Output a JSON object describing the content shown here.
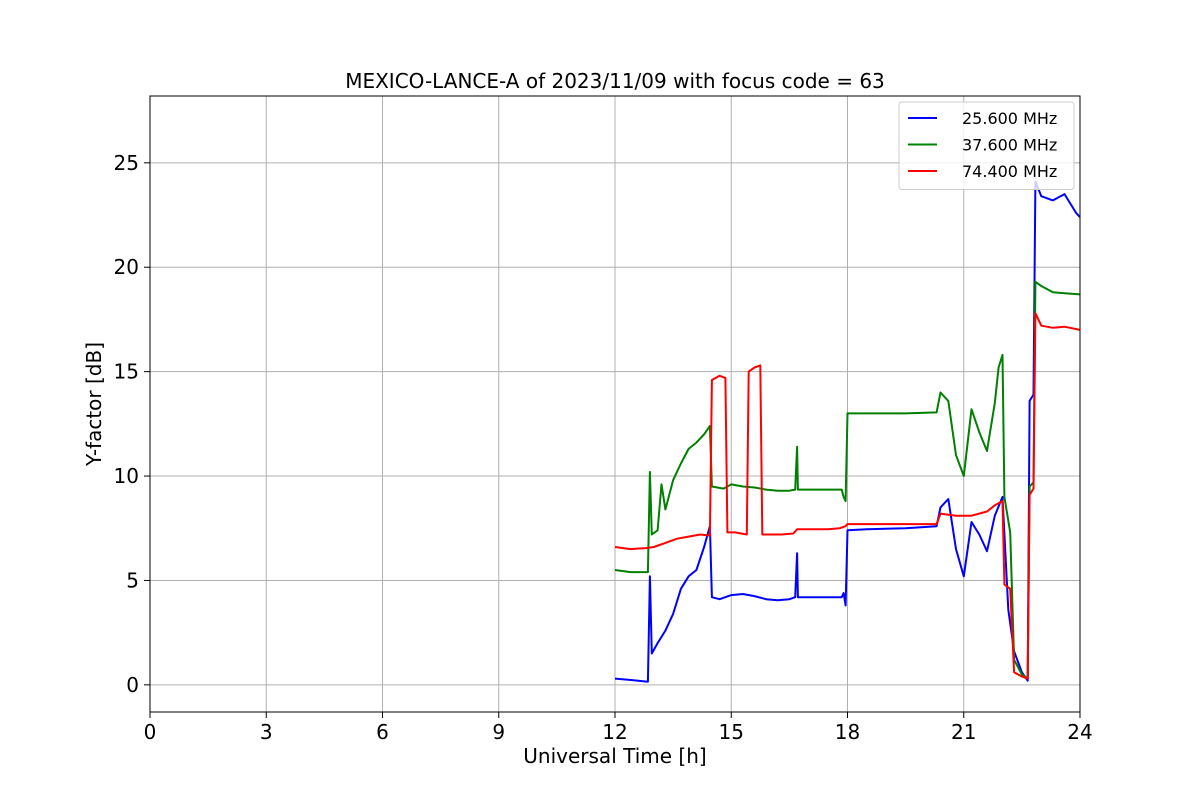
{
  "chart_data": {
    "type": "line",
    "title": "MEXICO-LANCE-A of 2023/11/09 with focus code = 63",
    "xlabel": "Universal Time [h]",
    "ylabel": "Y-factor [dB]",
    "xlim": [
      0,
      24
    ],
    "ylim": [
      -1.3,
      28.2
    ],
    "xticks": [
      0,
      3,
      6,
      9,
      12,
      15,
      18,
      21,
      24
    ],
    "yticks": [
      0,
      5,
      10,
      15,
      20,
      25
    ],
    "grid": true,
    "legend_position": "top-right",
    "series": [
      {
        "name": "25.600 MHz",
        "color": "#0000ff",
        "points": [
          [
            12.0,
            0.3
          ],
          [
            12.3,
            0.25
          ],
          [
            12.6,
            0.2
          ],
          [
            12.85,
            0.15
          ],
          [
            12.9,
            5.2
          ],
          [
            12.95,
            1.5
          ],
          [
            13.1,
            2.0
          ],
          [
            13.3,
            2.6
          ],
          [
            13.5,
            3.4
          ],
          [
            13.7,
            4.6
          ],
          [
            13.9,
            5.2
          ],
          [
            14.1,
            5.5
          ],
          [
            14.3,
            6.6
          ],
          [
            14.45,
            7.6
          ],
          [
            14.5,
            4.2
          ],
          [
            14.7,
            4.1
          ],
          [
            15.0,
            4.3
          ],
          [
            15.3,
            4.35
          ],
          [
            15.6,
            4.25
          ],
          [
            15.9,
            4.1
          ],
          [
            16.2,
            4.05
          ],
          [
            16.5,
            4.1
          ],
          [
            16.65,
            4.2
          ],
          [
            16.7,
            6.3
          ],
          [
            16.72,
            4.2
          ],
          [
            17.0,
            4.2
          ],
          [
            17.5,
            4.2
          ],
          [
            17.85,
            4.2
          ],
          [
            17.9,
            4.4
          ],
          [
            17.95,
            3.8
          ],
          [
            18.0,
            7.4
          ],
          [
            18.5,
            7.45
          ],
          [
            19.5,
            7.5
          ],
          [
            20.3,
            7.6
          ],
          [
            20.4,
            8.5
          ],
          [
            20.6,
            8.9
          ],
          [
            20.8,
            6.5
          ],
          [
            21.0,
            5.2
          ],
          [
            21.2,
            7.8
          ],
          [
            21.4,
            7.2
          ],
          [
            21.6,
            6.4
          ],
          [
            21.8,
            8.1
          ],
          [
            22.0,
            9.0
          ],
          [
            22.15,
            3.6
          ],
          [
            22.3,
            1.6
          ],
          [
            22.5,
            0.6
          ],
          [
            22.65,
            0.2
          ],
          [
            22.7,
            13.6
          ],
          [
            22.8,
            13.9
          ],
          [
            22.85,
            24.1
          ],
          [
            23.0,
            23.4
          ],
          [
            23.3,
            23.2
          ],
          [
            23.6,
            23.5
          ],
          [
            23.9,
            22.6
          ],
          [
            24.0,
            22.4
          ]
        ]
      },
      {
        "name": "37.600 MHz",
        "color": "#008000",
        "points": [
          [
            12.0,
            5.5
          ],
          [
            12.4,
            5.4
          ],
          [
            12.85,
            5.4
          ],
          [
            12.9,
            10.2
          ],
          [
            12.95,
            7.2
          ],
          [
            13.1,
            7.4
          ],
          [
            13.2,
            9.6
          ],
          [
            13.3,
            8.4
          ],
          [
            13.5,
            9.8
          ],
          [
            13.7,
            10.6
          ],
          [
            13.9,
            11.3
          ],
          [
            14.1,
            11.6
          ],
          [
            14.3,
            12.0
          ],
          [
            14.45,
            12.4
          ],
          [
            14.5,
            9.5
          ],
          [
            14.8,
            9.4
          ],
          [
            15.0,
            9.6
          ],
          [
            15.3,
            9.5
          ],
          [
            15.6,
            9.45
          ],
          [
            15.9,
            9.35
          ],
          [
            16.2,
            9.3
          ],
          [
            16.5,
            9.3
          ],
          [
            16.65,
            9.35
          ],
          [
            16.7,
            11.4
          ],
          [
            16.72,
            9.35
          ],
          [
            17.0,
            9.35
          ],
          [
            17.5,
            9.35
          ],
          [
            17.85,
            9.35
          ],
          [
            17.9,
            9.0
          ],
          [
            17.95,
            8.8
          ],
          [
            18.0,
            13.0
          ],
          [
            18.5,
            13.0
          ],
          [
            19.5,
            13.0
          ],
          [
            20.3,
            13.05
          ],
          [
            20.4,
            14.0
          ],
          [
            20.6,
            13.6
          ],
          [
            20.8,
            11.0
          ],
          [
            21.0,
            10.0
          ],
          [
            21.2,
            13.2
          ],
          [
            21.4,
            12.1
          ],
          [
            21.6,
            11.2
          ],
          [
            21.8,
            13.5
          ],
          [
            21.9,
            15.2
          ],
          [
            22.0,
            15.8
          ],
          [
            22.05,
            9.0
          ],
          [
            22.2,
            7.3
          ],
          [
            22.3,
            1.2
          ],
          [
            22.5,
            0.5
          ],
          [
            22.65,
            0.3
          ],
          [
            22.7,
            9.5
          ],
          [
            22.8,
            9.7
          ],
          [
            22.85,
            19.3
          ],
          [
            23.0,
            19.1
          ],
          [
            23.3,
            18.8
          ],
          [
            23.6,
            18.75
          ],
          [
            24.0,
            18.7
          ]
        ]
      },
      {
        "name": "74.400 MHz",
        "color": "#ff0000",
        "points": [
          [
            12.0,
            6.6
          ],
          [
            12.4,
            6.5
          ],
          [
            12.8,
            6.55
          ],
          [
            13.0,
            6.6
          ],
          [
            13.3,
            6.8
          ],
          [
            13.6,
            7.0
          ],
          [
            13.9,
            7.1
          ],
          [
            14.2,
            7.2
          ],
          [
            14.45,
            7.15
          ],
          [
            14.5,
            14.6
          ],
          [
            14.7,
            14.8
          ],
          [
            14.85,
            14.7
          ],
          [
            14.9,
            7.3
          ],
          [
            15.1,
            7.3
          ],
          [
            15.4,
            7.2
          ],
          [
            15.45,
            15.0
          ],
          [
            15.6,
            15.2
          ],
          [
            15.75,
            15.3
          ],
          [
            15.8,
            7.2
          ],
          [
            16.0,
            7.2
          ],
          [
            16.3,
            7.2
          ],
          [
            16.6,
            7.25
          ],
          [
            16.7,
            7.45
          ],
          [
            17.0,
            7.45
          ],
          [
            17.5,
            7.45
          ],
          [
            17.8,
            7.5
          ],
          [
            17.95,
            7.6
          ],
          [
            18.0,
            7.7
          ],
          [
            18.5,
            7.7
          ],
          [
            19.5,
            7.7
          ],
          [
            20.3,
            7.7
          ],
          [
            20.4,
            8.2
          ],
          [
            20.8,
            8.1
          ],
          [
            21.2,
            8.1
          ],
          [
            21.6,
            8.3
          ],
          [
            21.8,
            8.6
          ],
          [
            22.0,
            8.8
          ],
          [
            22.05,
            4.8
          ],
          [
            22.2,
            4.6
          ],
          [
            22.3,
            0.6
          ],
          [
            22.5,
            0.4
          ],
          [
            22.65,
            0.3
          ],
          [
            22.7,
            9.1
          ],
          [
            22.8,
            9.4
          ],
          [
            22.85,
            17.8
          ],
          [
            23.0,
            17.2
          ],
          [
            23.3,
            17.1
          ],
          [
            23.6,
            17.15
          ],
          [
            24.0,
            17.0
          ]
        ]
      }
    ]
  }
}
